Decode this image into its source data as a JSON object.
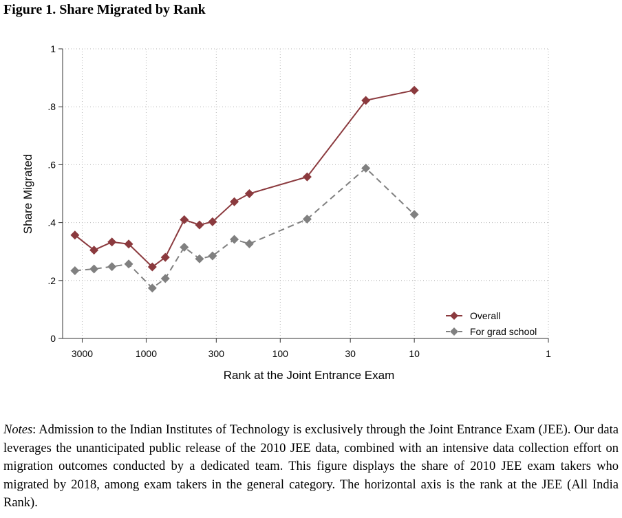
{
  "figure": {
    "title": "Figure 1. Share Migrated by Rank"
  },
  "chart_data": {
    "type": "line",
    "title": "",
    "xlabel": "Rank at the Joint Entrance Exam",
    "ylabel": "Share Migrated",
    "x_scale": "log",
    "x_reversed": true,
    "xlim": [
      4200,
      1
    ],
    "ylim": [
      0,
      1
    ],
    "x_ticks": [
      3000,
      1000,
      300,
      100,
      30,
      10,
      1
    ],
    "x_tick_labels": [
      "3000",
      "1000",
      "300",
      "100",
      "30",
      "10",
      "1"
    ],
    "y_ticks": [
      0,
      0.2,
      0.4,
      0.6,
      0.8,
      1
    ],
    "y_tick_labels": [
      "0",
      ".2",
      ".4",
      ".6",
      ".8",
      "1"
    ],
    "grid": true,
    "legend_position": "bottom-right",
    "x": [
      3400,
      2450,
      1800,
      1350,
      900,
      720,
      520,
      400,
      320,
      220,
      170,
      63,
      23,
      10
    ],
    "series": [
      {
        "name": "Overall",
        "color": "#8b3a3e",
        "line_style": "solid",
        "marker": "diamond",
        "values": [
          0.357,
          0.305,
          0.333,
          0.326,
          0.247,
          0.28,
          0.41,
          0.392,
          0.403,
          0.472,
          0.5,
          0.558,
          0.822,
          0.857
        ]
      },
      {
        "name": "For grad school",
        "color": "#808080",
        "line_style": "dashed",
        "marker": "diamond",
        "values": [
          0.234,
          0.24,
          0.248,
          0.257,
          0.174,
          0.207,
          0.315,
          0.275,
          0.285,
          0.342,
          0.327,
          0.412,
          0.588,
          0.428
        ]
      }
    ]
  },
  "notes": {
    "label": "Notes",
    "text": ": Admission to the Indian Institutes of Technology is exclusively through the Joint Entrance Exam (JEE). Our data leverages the unanticipated public release of the 2010 JEE data, combined with an intensive data collection effort on migration outcomes conducted by a dedicated team. This figure displays the share of 2010 JEE exam takers who migrated by 2018, among exam takers in the general category. The horizontal axis is the rank at the JEE (All India Rank)."
  }
}
